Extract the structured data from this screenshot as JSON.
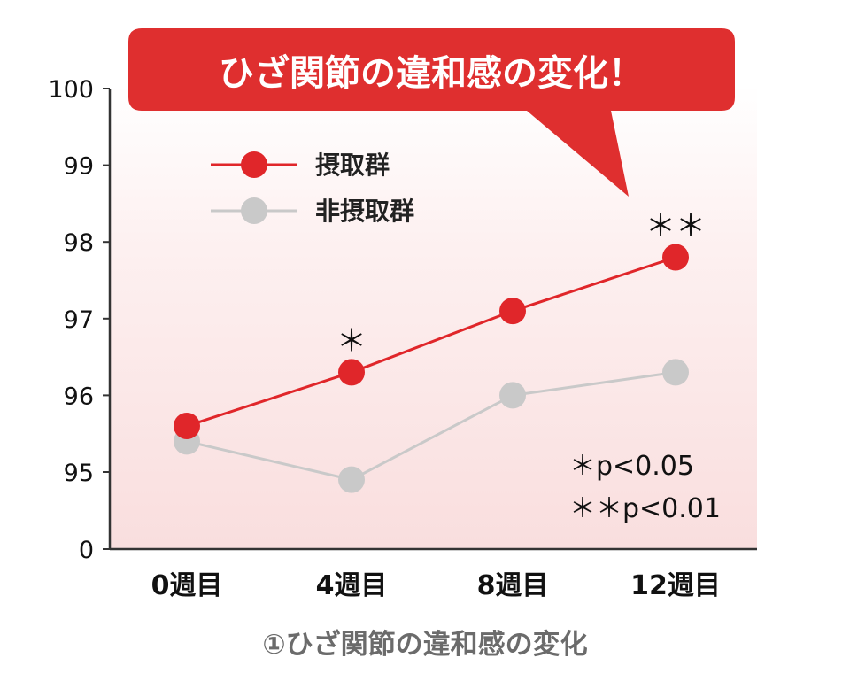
{
  "banner": {
    "text": "ひざ関節の違和感の変化！"
  },
  "caption": "①ひざ関節の違和感の変化",
  "colors": {
    "accent": "#e0262a",
    "grey": "#c9c9c9",
    "banner": "#df2f2f"
  },
  "chart_data": {
    "type": "line",
    "categories": [
      "0週目",
      "4週目",
      "8週目",
      "12週目"
    ],
    "y_ticks": [
      "0",
      "95",
      "96",
      "97",
      "98",
      "99",
      "100"
    ],
    "axis_break": "between 0 and 95",
    "ylim": [
      95,
      100
    ],
    "series": [
      {
        "name": "摂取群",
        "values": [
          95.6,
          96.3,
          97.1,
          97.8
        ],
        "color": "#e0262a"
      },
      {
        "name": "非摂取群",
        "values": [
          95.4,
          94.9,
          96.0,
          96.3
        ],
        "color": "#c9c9c9"
      }
    ],
    "significance": [
      "",
      "＊",
      "",
      "＊＊"
    ],
    "notes": {
      "p1": "＊p<0.05",
      "p2": "＊＊p<0.01"
    },
    "legend_position": "top-left",
    "grid": false
  }
}
